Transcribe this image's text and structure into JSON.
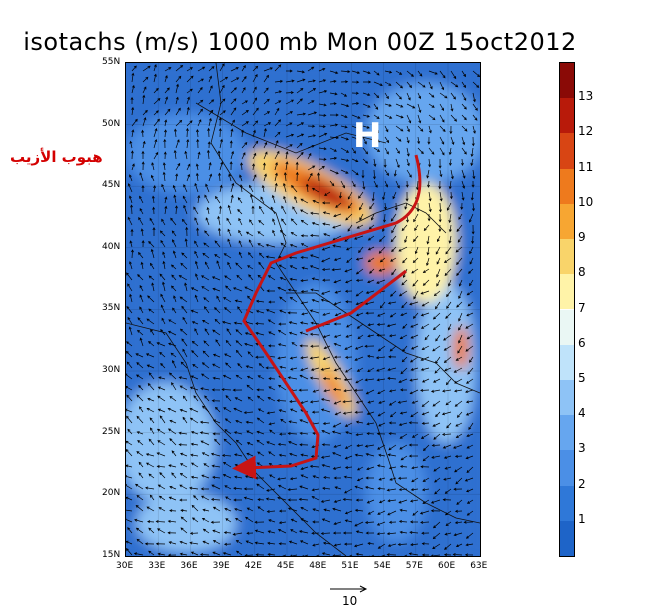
{
  "title": "isotachs (m/s) 1000 mb Mon 00Z 15oct2012",
  "annotation_arabic": "هبوب الأزيب",
  "high_marker": "H",
  "lat_labels": [
    "55N",
    "50N",
    "45N",
    "40N",
    "35N",
    "30N",
    "25N",
    "20N",
    "15N"
  ],
  "lon_labels": [
    "30E",
    "33E",
    "36E",
    "39E",
    "42E",
    "45E",
    "48E",
    "51E",
    "54E",
    "57E",
    "60E",
    "63E"
  ],
  "colorbar": {
    "labels": [
      "1",
      "2",
      "3",
      "4",
      "5",
      "6",
      "7",
      "8",
      "9",
      "10",
      "11",
      "12",
      "13"
    ],
    "colors": [
      "#1e64c8",
      "#2f78d8",
      "#4b8fe6",
      "#66a6ef",
      "#8ec3f6",
      "#bfe3fa",
      "#eaf7f4",
      "#fff3a8",
      "#f9d46a",
      "#f7a632",
      "#ee7a1d",
      "#d84514",
      "#b81a0a",
      "#8a0a06"
    ]
  },
  "wind_reference": "10",
  "accent_colors": {
    "track": "#c81414",
    "annotation": "#d40000"
  }
}
